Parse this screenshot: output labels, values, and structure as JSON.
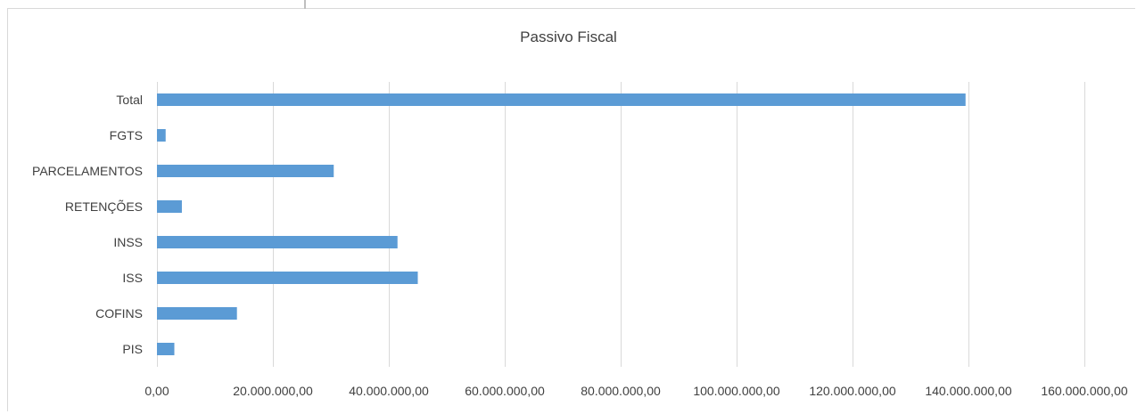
{
  "chart_data": {
    "type": "bar",
    "orientation": "horizontal",
    "title": "Passivo Fiscal",
    "categories": [
      "Total",
      "FGTS",
      "PARCELAMENTOS",
      "RETENÇÕES",
      "INSS",
      "ISS",
      "COFINS",
      "PIS"
    ],
    "values": [
      139500000,
      1500000,
      30500000,
      4300000,
      41500000,
      45000000,
      13800000,
      3000000
    ],
    "xlim": [
      0,
      160000000
    ],
    "x_ticks": [
      0,
      20000000,
      40000000,
      60000000,
      80000000,
      100000000,
      120000000,
      140000000,
      160000000
    ],
    "x_tick_labels": [
      "0,00",
      "20.000.000,00",
      "40.000.000,00",
      "60.000.000,00",
      "80.000.000,00",
      "100.000.000,00",
      "120.000.000,00",
      "140.000.000,00",
      "160.000.000,00"
    ],
    "grid": true,
    "bar_color": "#5b9bd5",
    "grid_color": "#d9d9d9"
  }
}
